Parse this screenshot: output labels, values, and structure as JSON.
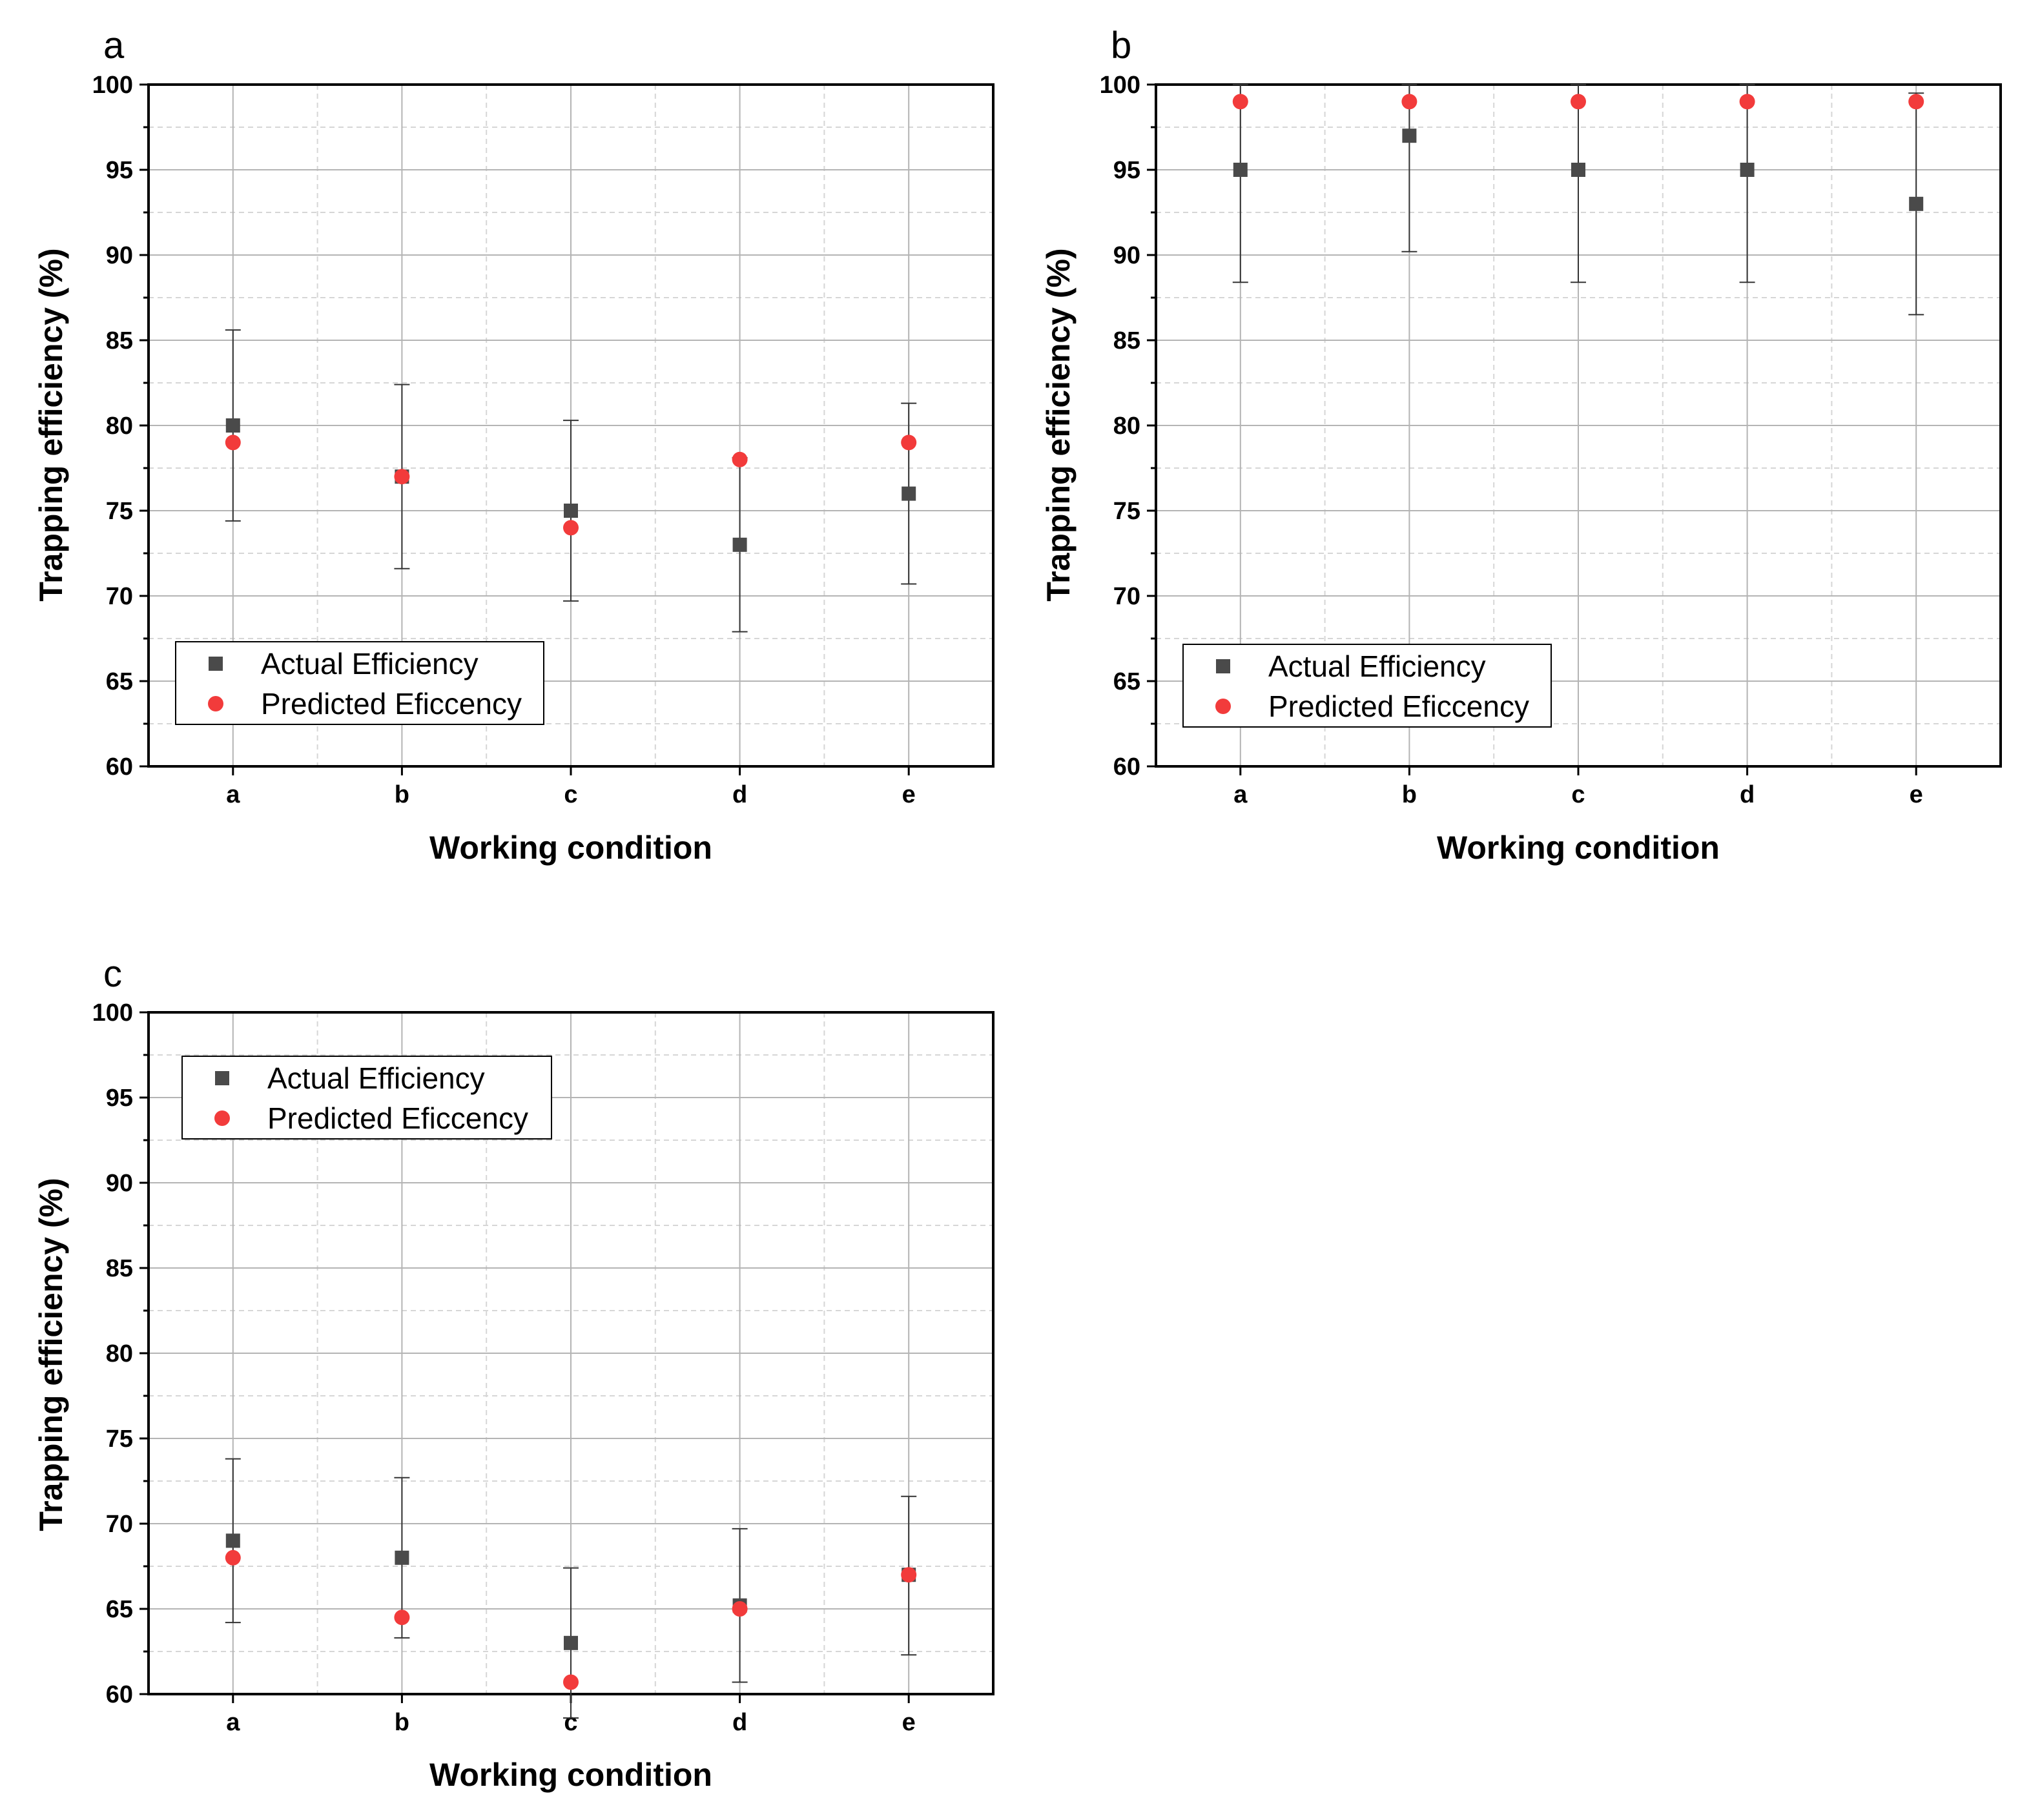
{
  "figure": {
    "colors": {
      "actual": "#4a4a4a",
      "predicted": "#f23b3b",
      "major_grid": "#b4b4b4",
      "minor_grid": "#d6d6d6",
      "frame": "#000000",
      "error_bar": "#333333"
    }
  },
  "chart_data": [
    {
      "panel": "a",
      "type": "scatter",
      "title": "",
      "xlabel": "Working condition",
      "ylabel": "Trapping efficiency (%)",
      "categories": [
        "a",
        "b",
        "c",
        "d",
        "e"
      ],
      "ylim": [
        60,
        100
      ],
      "yticks": [
        "60",
        "65",
        "70",
        "75",
        "80",
        "85",
        "90",
        "95",
        "100"
      ],
      "grid": true,
      "legend_position": "bottom-left",
      "series": [
        {
          "name": "Actual Efficiency",
          "marker": "square",
          "values": [
            80,
            77,
            75,
            73,
            76
          ],
          "error_low": [
            74.4,
            71.6,
            69.7,
            67.9,
            70.7
          ],
          "error_high": [
            85.6,
            82.4,
            80.3,
            78.1,
            81.3
          ]
        },
        {
          "name": "Predicted Eficcency",
          "marker": "circle",
          "values": [
            79,
            77,
            74,
            78,
            79
          ]
        }
      ]
    },
    {
      "panel": "b",
      "type": "scatter",
      "title": "",
      "xlabel": "Working condition",
      "ylabel": "Trapping efficiency (%)",
      "categories": [
        "a",
        "b",
        "c",
        "d",
        "e"
      ],
      "ylim": [
        60,
        100
      ],
      "yticks": [
        "60",
        "65",
        "70",
        "75",
        "80",
        "85",
        "90",
        "95",
        "100"
      ],
      "grid": true,
      "legend_position": "bottom-left",
      "series": [
        {
          "name": "Actual Efficiency",
          "marker": "square",
          "values": [
            95,
            97,
            95,
            95,
            93
          ],
          "error_low": [
            88.4,
            90.2,
            88.4,
            88.4,
            86.5
          ],
          "error_high": [
            100,
            100,
            100,
            100,
            99.5
          ]
        },
        {
          "name": "Predicted Eficcency",
          "marker": "circle",
          "values": [
            99,
            99,
            99,
            99,
            99
          ]
        }
      ]
    },
    {
      "panel": "c",
      "type": "scatter",
      "title": "",
      "xlabel": "Working condition",
      "ylabel": "Trapping efficiency (%)",
      "categories": [
        "a",
        "b",
        "c",
        "d",
        "e"
      ],
      "ylim": [
        60,
        100
      ],
      "yticks": [
        "60",
        "65",
        "70",
        "75",
        "80",
        "85",
        "90",
        "95",
        "100"
      ],
      "grid": true,
      "legend_position": "top-left",
      "series": [
        {
          "name": "Actual Efficiency",
          "marker": "square",
          "values": [
            69,
            68,
            63,
            65.2,
            67
          ],
          "error_low": [
            64.2,
            63.3,
            58.6,
            60.7,
            62.3
          ],
          "error_high": [
            73.8,
            72.7,
            67.4,
            69.7,
            71.6
          ]
        },
        {
          "name": "Predicted Eficcency",
          "marker": "circle",
          "values": [
            68,
            64.5,
            60.7,
            65,
            67
          ]
        }
      ]
    }
  ]
}
